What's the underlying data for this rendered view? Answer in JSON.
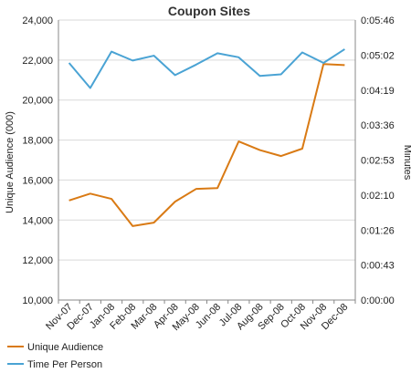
{
  "chart_data": {
    "type": "line",
    "title": "Coupon Sites",
    "xlabel": "",
    "ylabel": "Unique Audience (000)",
    "y2label": "Minutes",
    "categories": [
      "Nov-07",
      "Dec-07",
      "Jan-08",
      "Feb-08",
      "Mar-08",
      "Apr-08",
      "May-08",
      "Jun-08",
      "Jul-08",
      "Aug-08",
      "Sep-08",
      "Oct-08",
      "Nov-08",
      "Dec-08"
    ],
    "ylim": [
      10000,
      24000
    ],
    "yticks": [
      "10,000",
      "12,000",
      "14,000",
      "16,000",
      "18,000",
      "20,000",
      "22,000",
      "24,000"
    ],
    "y2lim_seconds": [
      0,
      346
    ],
    "y2ticks": [
      "0:00:00",
      "0:00:43",
      "0:01:26",
      "0:02:10",
      "0:02:53",
      "0:03:36",
      "0:04:19",
      "0:05:02",
      "0:05:46"
    ],
    "grid": true,
    "legend_position": "bottom-left",
    "series": [
      {
        "name": "Unique Audience",
        "axis": "left",
        "color": "#d97a14",
        "values": [
          14980,
          15320,
          15060,
          13700,
          13870,
          14920,
          15560,
          15600,
          17930,
          17500,
          17200,
          17570,
          21800,
          21750
        ]
      },
      {
        "name": "Time Per Person",
        "axis": "right",
        "color": "#4aa3d4",
        "values_seconds": [
          293,
          262,
          307,
          296,
          302,
          278,
          291,
          305,
          300,
          277,
          279,
          306,
          293,
          310
        ]
      }
    ]
  }
}
